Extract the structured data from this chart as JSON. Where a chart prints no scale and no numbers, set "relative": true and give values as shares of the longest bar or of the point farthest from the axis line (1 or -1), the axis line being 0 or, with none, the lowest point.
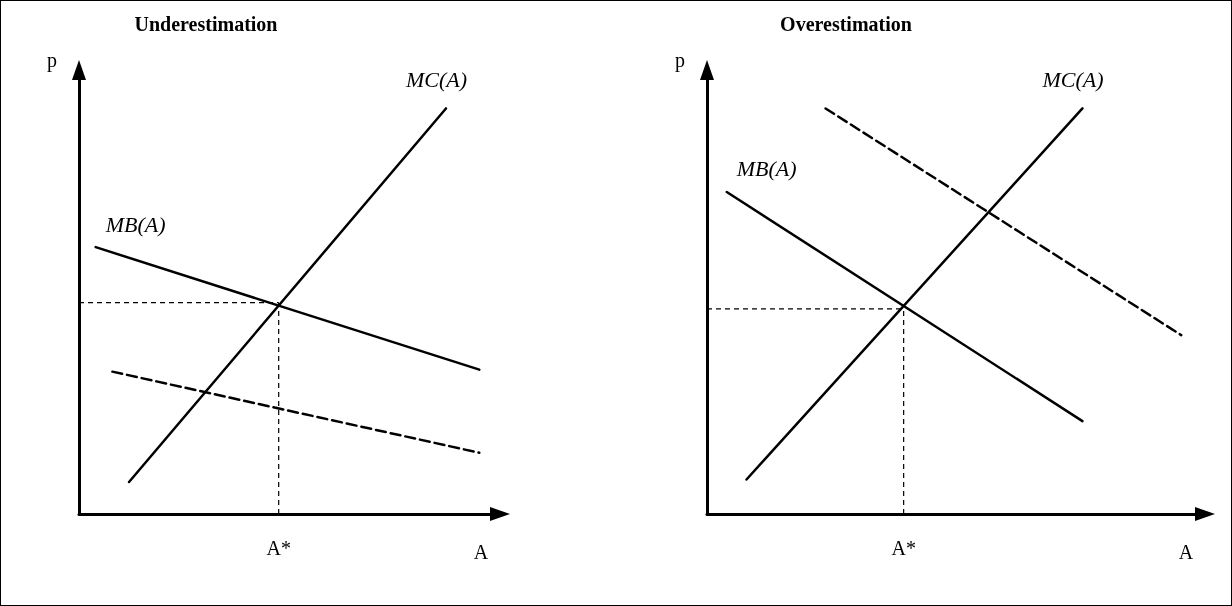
{
  "chart_data": [
    {
      "type": "line",
      "title": "Underestimation",
      "ylabel": "p",
      "xlabel": "A",
      "relative": true,
      "marker": "none",
      "categories": [
        null,
        null,
        null,
        null,
        null,
        null,
        null,
        null,
        null,
        null,
        null,
        null,
        null,
        null,
        null,
        null,
        null,
        null,
        null,
        null,
        null,
        null,
        null,
        null,
        null,
        null
      ],
      "series": [
        {
          "name": "MC(A)",
          "color": "#000000",
          "values": [
            null,
            null,
            null,
            0.079,
            null,
            null,
            null,
            null,
            null,
            null,
            null,
            null,
            null,
            null,
            null,
            null,
            null,
            null,
            null,
            null,
            null,
            null,
            1,
            null,
            null,
            null
          ]
        },
        {
          "name": "MB(A)",
          "color": "#000000",
          "values": [
            null,
            0.658,
            null,
            null,
            null,
            null,
            null,
            null,
            null,
            null,
            null,
            null,
            null,
            null,
            null,
            null,
            null,
            null,
            null,
            null,
            null,
            null,
            null,
            null,
            0.356,
            null
          ]
        },
        {
          "color": "#000000",
          "line_style": "dashed",
          "values": [
            null,
            null,
            0.351,
            null,
            null,
            null,
            null,
            null,
            null,
            null,
            null,
            null,
            null,
            null,
            null,
            null,
            null,
            null,
            null,
            null,
            null,
            null,
            null,
            null,
            0.151,
            null
          ]
        }
      ],
      "ref_lines": [
        {
          "axis": "y",
          "value": 0.521,
          "color": "#000000",
          "line_style": "dashed"
        }
      ],
      "annotations": [
        "A*"
      ]
    },
    {
      "type": "line",
      "title": "Overestimation",
      "ylabel": "p",
      "xlabel": "A",
      "relative": true,
      "marker": "none",
      "categories": [
        null,
        null,
        null,
        null,
        null,
        null,
        null,
        null,
        null,
        null,
        null,
        null,
        null,
        null,
        null,
        null,
        null,
        null,
        null,
        null,
        null,
        null,
        null,
        null,
        null,
        null
      ],
      "series": [
        {
          "name": "MC(A)",
          "color": "#000000",
          "values": [
            null,
            null,
            0.085,
            null,
            null,
            null,
            null,
            null,
            null,
            null,
            null,
            null,
            null,
            null,
            null,
            null,
            null,
            null,
            null,
            1,
            null,
            null,
            null,
            null,
            null,
            null
          ]
        },
        {
          "name": "MB(A)",
          "color": "#000000",
          "values": [
            null,
            0.794,
            null,
            null,
            null,
            null,
            null,
            null,
            null,
            null,
            null,
            null,
            null,
            null,
            null,
            null,
            null,
            null,
            null,
            0.229,
            null,
            null,
            null,
            null,
            null,
            null
          ]
        },
        {
          "color": "#000000",
          "line_style": "dashed",
          "values": [
            null,
            null,
            null,
            null,
            null,
            null,
            1,
            null,
            null,
            null,
            null,
            null,
            null,
            null,
            null,
            null,
            null,
            null,
            null,
            null,
            null,
            null,
            null,
            null,
            0.441,
            null
          ]
        }
      ],
      "ref_lines": [
        {
          "axis": "y",
          "value": 0.506,
          "color": "#000000",
          "line_style": "dashed"
        }
      ],
      "annotations": [
        "A*"
      ]
    }
  ]
}
